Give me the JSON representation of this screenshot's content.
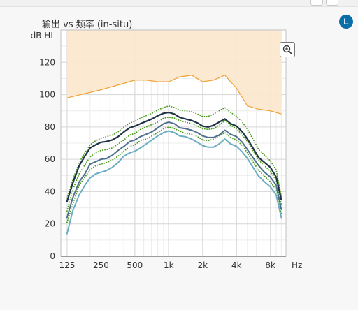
{
  "window": {
    "badge_letter": "L"
  },
  "chart_data": {
    "type": "line",
    "title": "输出 vs 频率 (in-situ)",
    "ylabel": "dB HL",
    "xlabel": "Hz",
    "x_scale": "log",
    "xlim": [
      110,
      11000
    ],
    "ylim": [
      0,
      140
    ],
    "grid": true,
    "x_ticks": [
      125,
      250,
      500,
      1000,
      2000,
      4000,
      8000
    ],
    "x_tick_labels": [
      "125",
      "250",
      "500",
      "1k",
      "2k",
      "4k",
      "8k"
    ],
    "y_ticks": [
      0,
      20,
      40,
      60,
      80,
      100,
      120
    ],
    "colors": {
      "range_fill": "#fbe7cd",
      "range_line": "#f0a030",
      "upper": "#1f3347",
      "middle": "#4e6f8e",
      "lower": "#6aaec4",
      "dotted": "#4a9e1c",
      "grid": "#d6d6d6"
    },
    "x": [
      125,
      140,
      160,
      180,
      200,
      225,
      250,
      280,
      315,
      355,
      400,
      450,
      500,
      560,
      630,
      710,
      800,
      900,
      1000,
      1120,
      1250,
      1400,
      1600,
      1800,
      2000,
      2240,
      2500,
      2800,
      3150,
      3550,
      4000,
      4500,
      5000,
      5600,
      6300,
      7100,
      8000,
      9000,
      10000
    ],
    "shaded_range": {
      "x": [
        125,
        250,
        400,
        500,
        630,
        800,
        1000,
        1250,
        1600,
        2000,
        2500,
        3150,
        4000,
        5000,
        6300,
        8000,
        10000
      ],
      "top": 140,
      "bottom": [
        98,
        103,
        107,
        109,
        109,
        108,
        108,
        111,
        112,
        108,
        109,
        112,
        104,
        93,
        91,
        90,
        88
      ]
    },
    "series": [
      {
        "style": "solid",
        "color_key": "upper",
        "values": [
          34,
          45,
          56,
          62,
          67,
          69,
          70.5,
          71,
          72,
          74,
          77,
          79.5,
          80.5,
          82,
          83.5,
          85,
          87,
          88.5,
          89,
          88,
          86,
          85,
          84,
          82.5,
          80.5,
          80,
          81,
          83,
          85,
          82,
          80.5,
          77,
          72.5,
          67,
          61,
          58,
          55,
          49,
          35
        ]
      },
      {
        "style": "solid",
        "color_key": "middle",
        "values": [
          24,
          36,
          46,
          51,
          57,
          58.5,
          60,
          60.5,
          62.5,
          65.5,
          68,
          71,
          72,
          74,
          75.5,
          77,
          79.5,
          82,
          83,
          82,
          79.5,
          79,
          78,
          76.5,
          74.5,
          73.5,
          73.5,
          75,
          78,
          75.5,
          74,
          70.5,
          66,
          61,
          56,
          52,
          49,
          44,
          29
        ]
      },
      {
        "style": "solid",
        "color_key": "lower",
        "values": [
          14,
          28,
          38,
          44,
          48.5,
          51,
          52,
          53,
          55,
          58,
          62,
          64,
          65,
          67,
          69.5,
          72,
          74.5,
          76.5,
          77.5,
          76.5,
          74.5,
          74,
          72.5,
          70.5,
          68.5,
          67.5,
          67.5,
          69.5,
          72.5,
          69.5,
          68,
          64.5,
          60.5,
          55,
          49.5,
          46,
          43,
          38,
          24
        ]
      },
      {
        "style": "dotted",
        "color_key": "dotted",
        "values": [
          36,
          47,
          58,
          64,
          69,
          71.5,
          73,
          74,
          75,
          77,
          80,
          82.5,
          83.5,
          85.5,
          87,
          88.5,
          90.5,
          92,
          93,
          92,
          90.5,
          90,
          89.5,
          88,
          86.5,
          86.5,
          88,
          90,
          92,
          89,
          86.5,
          83,
          78.5,
          72.5,
          66,
          62.5,
          59,
          53.5,
          37
        ]
      },
      {
        "style": "dotted",
        "color_key": "dotted",
        "values": [
          28,
          41,
          51,
          56.5,
          61.5,
          64,
          65.5,
          66,
          67,
          69.5,
          72,
          75,
          76,
          78.5,
          80,
          81.5,
          83,
          85.5,
          86,
          85.5,
          84,
          83,
          82,
          80.5,
          79,
          78.5,
          79,
          81,
          84,
          81,
          79,
          75,
          71,
          65.5,
          59.5,
          56,
          52.5,
          47,
          32
        ]
      },
      {
        "style": "dotted",
        "color_key": "dotted",
        "values": [
          21,
          32,
          44,
          49,
          53.5,
          56,
          57,
          58,
          59.5,
          62,
          65,
          68,
          69,
          71.5,
          72.5,
          74.5,
          76.5,
          79,
          80,
          79,
          77.5,
          76,
          75.5,
          74,
          72,
          71.5,
          72.5,
          74.5,
          76.5,
          73.5,
          72,
          68.5,
          64,
          58.5,
          53,
          49.5,
          46,
          41,
          26
        ]
      }
    ]
  }
}
